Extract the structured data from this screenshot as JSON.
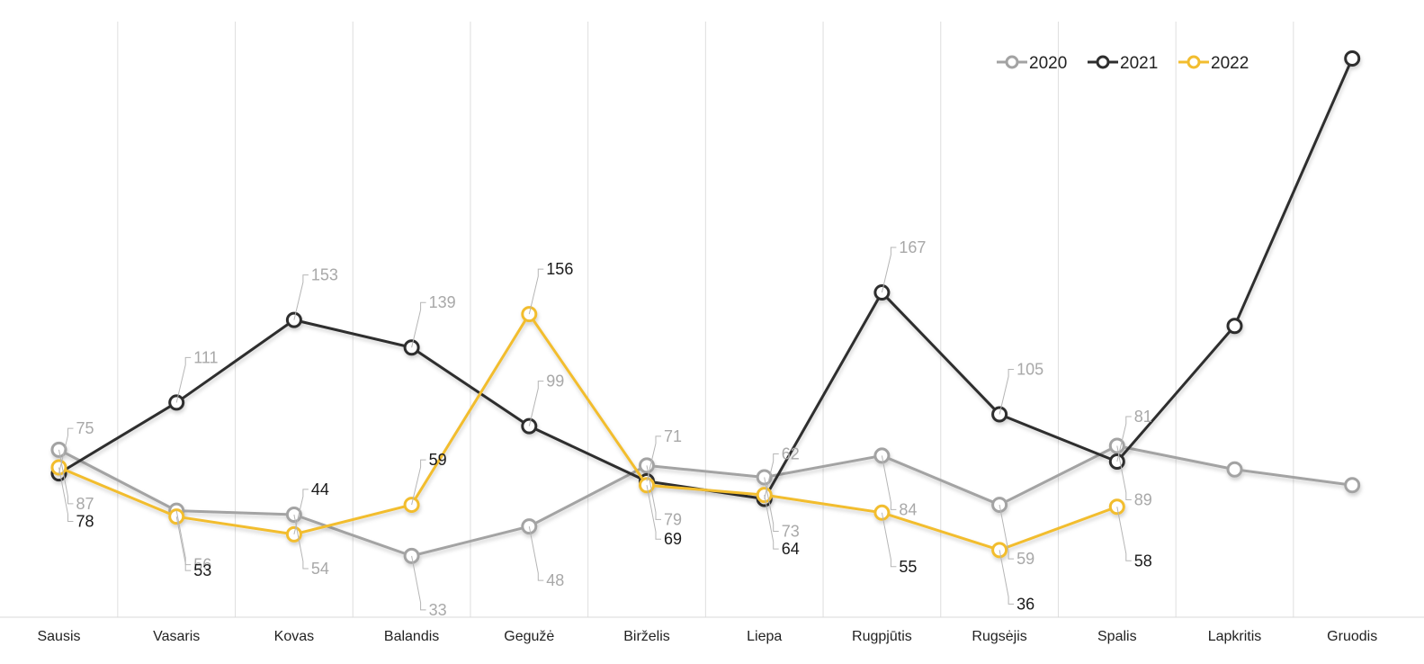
{
  "chart_data": {
    "type": "line",
    "title": "",
    "xlabel": "",
    "ylabel": "",
    "categories": [
      "Sausis",
      "Vasaris",
      "Kovas",
      "Balandis",
      "Gegužė",
      "Birželis",
      "Liepa",
      "Rugpjūtis",
      "Rugsėjis",
      "Spalis",
      "Lapkritis",
      "Gruodis"
    ],
    "ylim": [
      0,
      300
    ],
    "grid": {
      "vertical": true,
      "horizontal": false
    },
    "legend_position": "top-right",
    "series": [
      {
        "name": "2020",
        "color": "#a3a3a3",
        "values": [
          87,
          56,
          54,
          33,
          48,
          79,
          73,
          84,
          59,
          89,
          77,
          69
        ],
        "labels": [
          "87",
          "56",
          "54",
          "33",
          "48",
          "79",
          "73",
          "84",
          "59",
          "89",
          null,
          null
        ],
        "label_color": "#a8a8a8"
      },
      {
        "name": "2021",
        "color": "#2e2e2e",
        "values": [
          75,
          111,
          153,
          139,
          99,
          71,
          62,
          167,
          105,
          81,
          150,
          286
        ],
        "labels": [
          "75",
          "111",
          "153",
          "139",
          "99",
          "71",
          "62",
          "167",
          "105",
          "81",
          null,
          null
        ],
        "label_color": "#a8a8a8"
      },
      {
        "name": "2022",
        "color": "#f2bd2f",
        "values": [
          78,
          53,
          44,
          59,
          156,
          69,
          64,
          55,
          36,
          58,
          null,
          null
        ],
        "labels": [
          "78",
          "53",
          "44",
          "59",
          "156",
          "69",
          "64",
          "55",
          "36",
          "58",
          null,
          null
        ],
        "label_color": "#1a1a1a"
      }
    ]
  }
}
